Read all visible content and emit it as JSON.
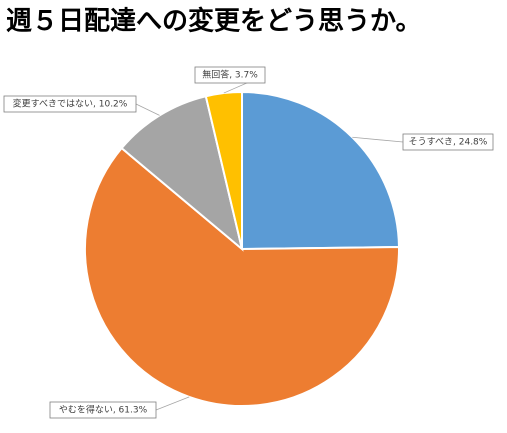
{
  "chart_data": {
    "type": "pie",
    "title": "週５日配達への変更をどう思うか。",
    "values": [
      24.8,
      61.3,
      10.2,
      3.7
    ],
    "value_labels": [
      "そうすべき, 24.8%",
      "やむを得ない, 61.3%",
      "変更すべきではない, 10.2%",
      "無回答, 3.7%"
    ],
    "colors": [
      "#5b9bd5",
      "#ed7d31",
      "#a5a5a5",
      "#ffc000"
    ]
  }
}
